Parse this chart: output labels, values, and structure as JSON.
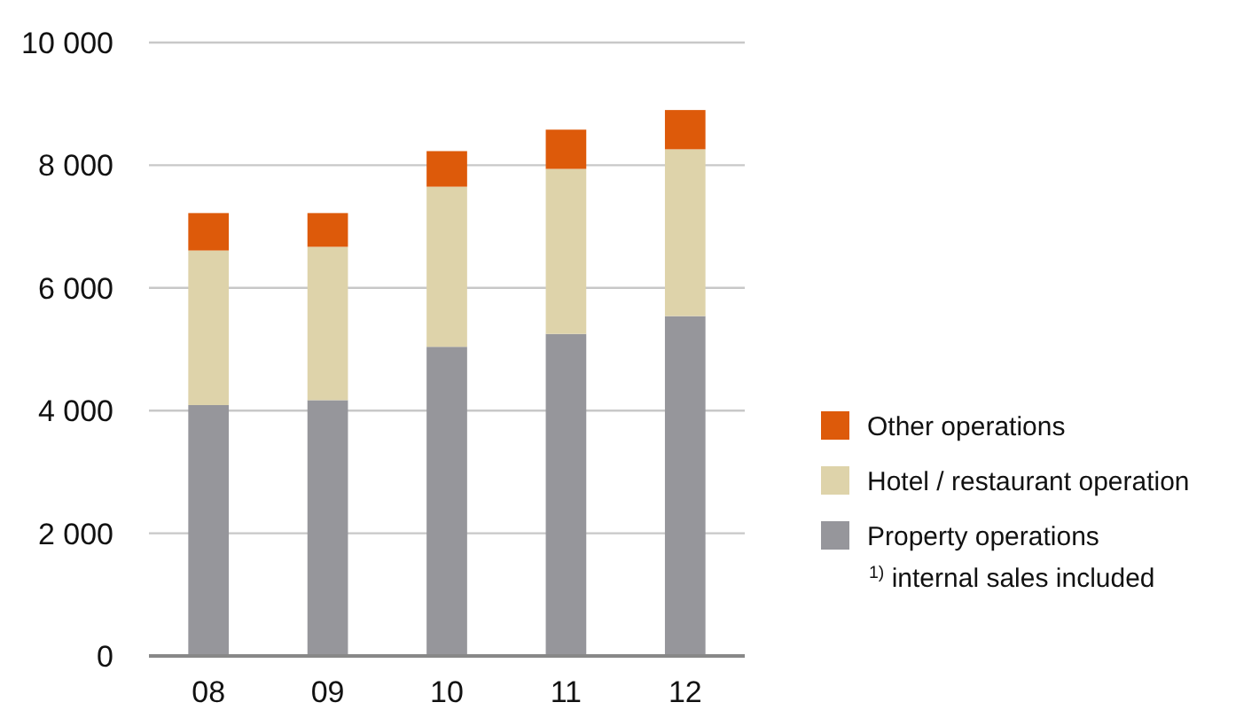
{
  "chart_data": {
    "type": "bar",
    "stacked": true,
    "categories": [
      "08",
      "09",
      "10",
      "11",
      "12"
    ],
    "series": [
      {
        "name": "Property operations",
        "color": "#96969b",
        "values": [
          4090,
          4170,
          5040,
          5250,
          5540
        ]
      },
      {
        "name": "Hotel / restaurant operation",
        "color": "#ded3aa",
        "values": [
          2520,
          2500,
          2610,
          2690,
          2720
        ]
      },
      {
        "name": "Other operations",
        "color": "#dd5a0a",
        "values": [
          610,
          550,
          580,
          640,
          640
        ]
      }
    ],
    "ylim": [
      0,
      10000
    ],
    "yticks": [
      {
        "value": 0,
        "label": "0"
      },
      {
        "value": 2000,
        "label": "2 000"
      },
      {
        "value": 4000,
        "label": "4 000"
      },
      {
        "value": 6000,
        "label": "6 000"
      },
      {
        "value": 8000,
        "label": "8 000"
      },
      {
        "value": 10000,
        "label": "10 000"
      }
    ],
    "grid": "y",
    "legend": "right",
    "annotations": [
      "$^{1)}$ internal sales included"
    ]
  }
}
